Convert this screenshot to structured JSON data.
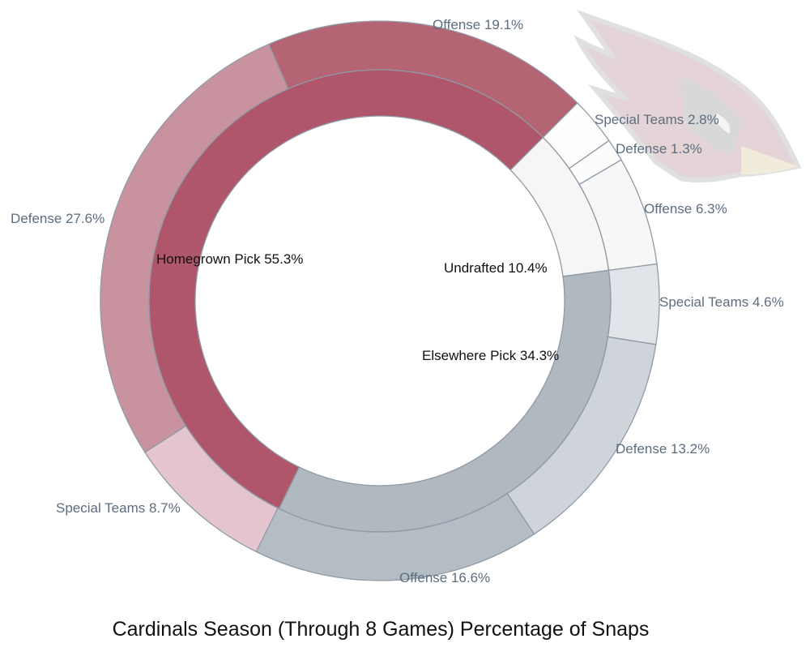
{
  "chart_data": {
    "type": "sunburst",
    "title": "Cardinals Season (Through 8 Games) Percentage of Snaps",
    "unit": "%",
    "stroke_color": "#8f9aa6",
    "groups": [
      {
        "name": "Homegrown Pick",
        "value": 55.3,
        "label": "Homegrown Pick 55.3%",
        "color": "#b0566b",
        "children": [
          {
            "name": "Special Teams",
            "value": 8.7,
            "label": "Special Teams 8.7%",
            "color": "#e4c5cd"
          },
          {
            "name": "Defense",
            "value": 27.6,
            "label": "Defense 27.6%",
            "color": "#c8939f"
          },
          {
            "name": "Offense",
            "value": 19.1,
            "label": "Offense 19.1%",
            "color": "#b56474"
          }
        ]
      },
      {
        "name": "Undrafted",
        "value": 10.4,
        "label": "Undrafted 10.4%",
        "color": "#f6f6f6",
        "children": [
          {
            "name": "Special Teams",
            "value": 2.8,
            "label": "Special Teams 2.8%",
            "color": "#fdfdfd"
          },
          {
            "name": "Defense",
            "value": 1.3,
            "label": "Defense 1.3%",
            "color": "#fcfcfc"
          },
          {
            "name": "Offense",
            "value": 6.3,
            "label": "Offense 6.3%",
            "color": "#f7f7f7"
          }
        ]
      },
      {
        "name": "Elsewhere Pick",
        "value": 34.3,
        "label": "Elsewhere Pick 34.3%",
        "color": "#b0b8c0",
        "children": [
          {
            "name": "Special Teams",
            "value": 4.6,
            "label": "Special Teams 4.6%",
            "color": "#e1e5e9"
          },
          {
            "name": "Defense",
            "value": 13.2,
            "label": "Defense 13.2%",
            "color": "#cfd4db"
          },
          {
            "name": "Offense",
            "value": 16.6,
            "label": "Offense 16.6%",
            "color": "#b4bcc4"
          }
        ]
      }
    ]
  },
  "logo": {
    "name": "Arizona Cardinals logo"
  }
}
